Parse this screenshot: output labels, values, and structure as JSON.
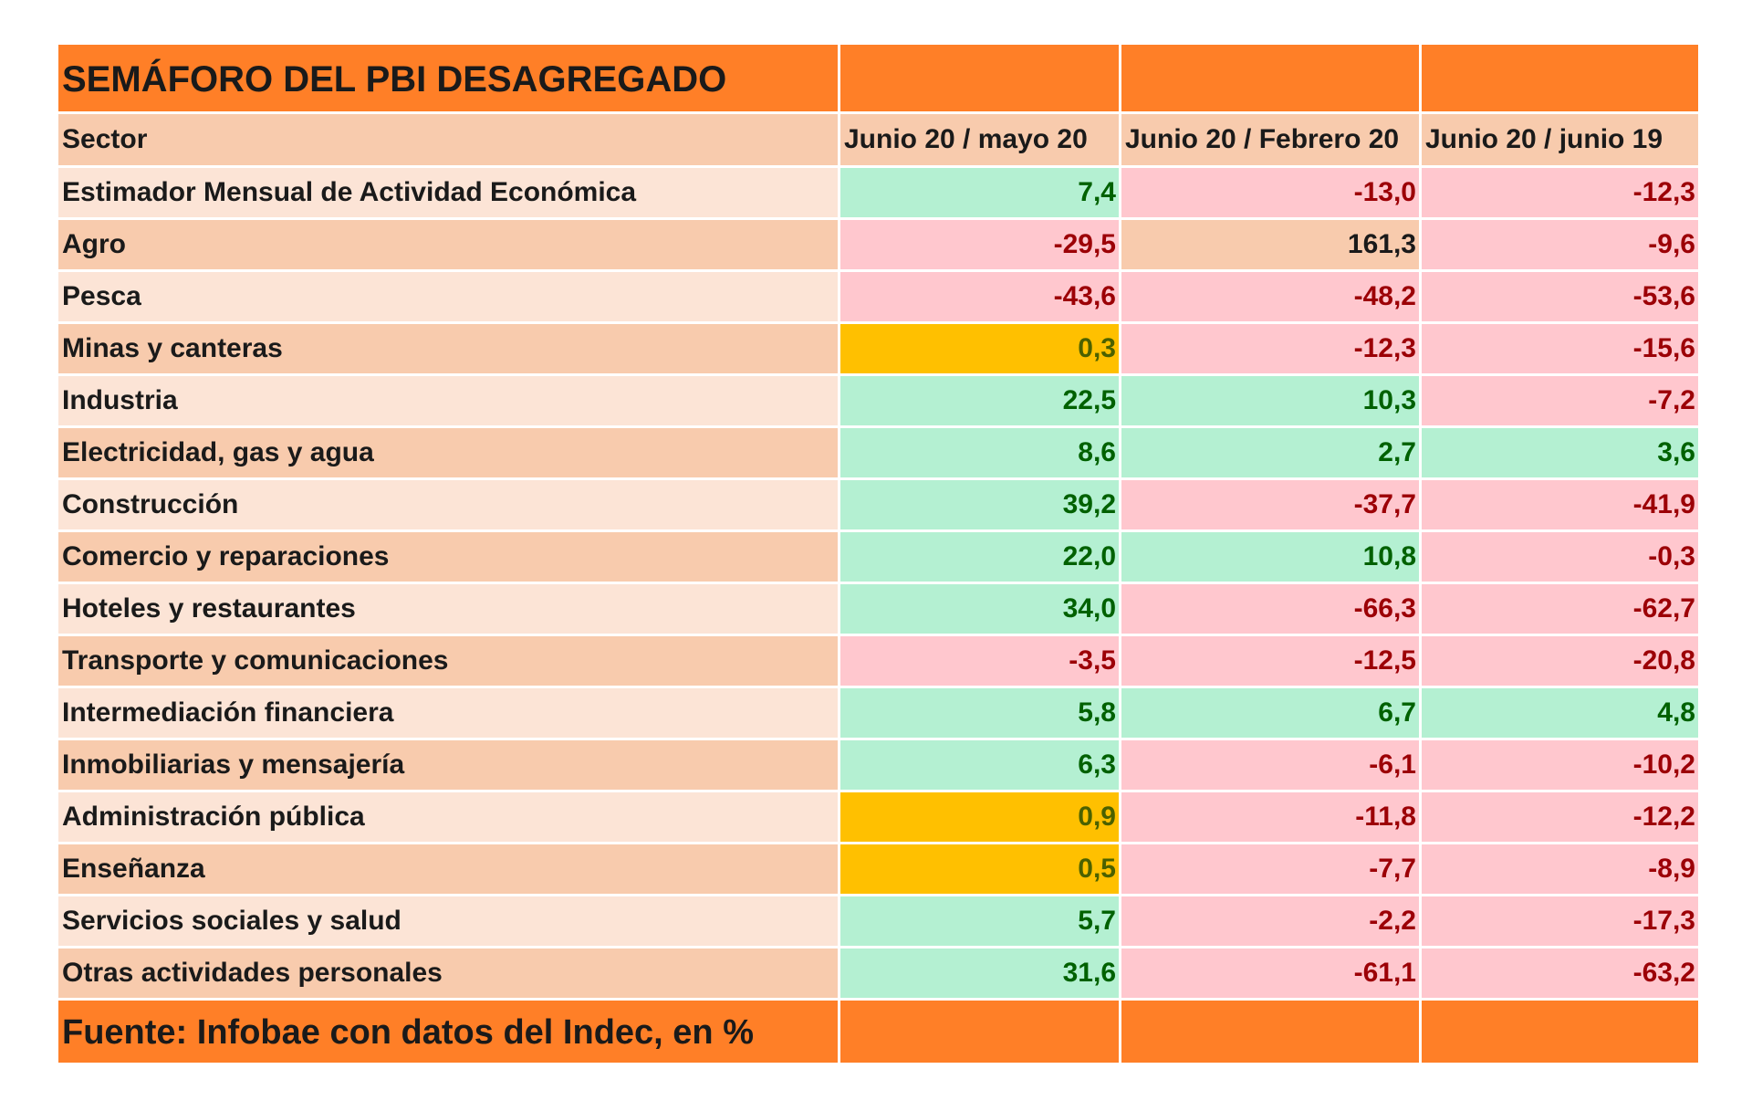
{
  "colors": {
    "title_bg": "#FF7F27",
    "header_bg": "#F8CBAD",
    "row_light": "#FCE4D6",
    "row_dark": "#F8CBAD",
    "text": "#1A1A1A",
    "green": {
      "bg": "#B4F0D2",
      "text": "#006100"
    },
    "red": {
      "bg": "#FFC7CE",
      "text": "#9C0006"
    },
    "amber": {
      "bg": "#FFC000",
      "text": "#4B6100"
    }
  },
  "chart_data": {
    "type": "table",
    "title": "SEMÁFORO DEL PBI DESAGREGADO",
    "columns": [
      "Sector",
      "Junio 20 / mayo 20",
      "Junio 20 / Febrero 20",
      "Junio 20 / junio 19"
    ],
    "rows": [
      {
        "sector": "Estimador Mensual de Actividad Económica",
        "values": [
          7.4,
          -13.0,
          -12.3
        ],
        "colors": [
          "green",
          "red",
          "red"
        ]
      },
      {
        "sector": "Agro",
        "values": [
          -29.5,
          161.3,
          -9.6
        ],
        "colors": [
          "red",
          "none",
          "red"
        ]
      },
      {
        "sector": "Pesca",
        "values": [
          -43.6,
          -48.2,
          -53.6
        ],
        "colors": [
          "red",
          "red",
          "red"
        ]
      },
      {
        "sector": "Minas y canteras",
        "values": [
          0.3,
          -12.3,
          -15.6
        ],
        "colors": [
          "amber",
          "red",
          "red"
        ]
      },
      {
        "sector": "Industria",
        "values": [
          22.5,
          10.3,
          -7.2
        ],
        "colors": [
          "green",
          "green",
          "red"
        ]
      },
      {
        "sector": "Electricidad, gas y agua",
        "values": [
          8.6,
          2.7,
          3.6
        ],
        "colors": [
          "green",
          "green",
          "green"
        ]
      },
      {
        "sector": "Construcción",
        "values": [
          39.2,
          -37.7,
          -41.9
        ],
        "colors": [
          "green",
          "red",
          "red"
        ]
      },
      {
        "sector": "Comercio y reparaciones",
        "values": [
          22.0,
          10.8,
          -0.3
        ],
        "colors": [
          "green",
          "green",
          "red"
        ]
      },
      {
        "sector": "Hoteles y restaurantes",
        "values": [
          34.0,
          -66.3,
          -62.7
        ],
        "colors": [
          "green",
          "red",
          "red"
        ]
      },
      {
        "sector": "Transporte y comunicaciones",
        "values": [
          -3.5,
          -12.5,
          -20.8
        ],
        "colors": [
          "red",
          "red",
          "red"
        ]
      },
      {
        "sector": "Intermediación financiera",
        "values": [
          5.8,
          6.7,
          4.8
        ],
        "colors": [
          "green",
          "green",
          "green"
        ]
      },
      {
        "sector": "Inmobiliarias y mensajería",
        "values": [
          6.3,
          -6.1,
          -10.2
        ],
        "colors": [
          "green",
          "red",
          "red"
        ]
      },
      {
        "sector": "Administración pública",
        "values": [
          0.9,
          -11.8,
          -12.2
        ],
        "colors": [
          "amber",
          "red",
          "red"
        ]
      },
      {
        "sector": "Enseñanza",
        "values": [
          0.5,
          -7.7,
          -8.9
        ],
        "colors": [
          "amber",
          "red",
          "red"
        ]
      },
      {
        "sector": "Servicios sociales y salud",
        "values": [
          5.7,
          -2.2,
          -17.3
        ],
        "colors": [
          "green",
          "red",
          "red"
        ]
      },
      {
        "sector": "Otras actividades personales",
        "values": [
          31.6,
          -61.1,
          -63.2
        ],
        "colors": [
          "green",
          "red",
          "red"
        ]
      }
    ],
    "source": "Fuente: Infobae con datos del Indec, en %"
  }
}
